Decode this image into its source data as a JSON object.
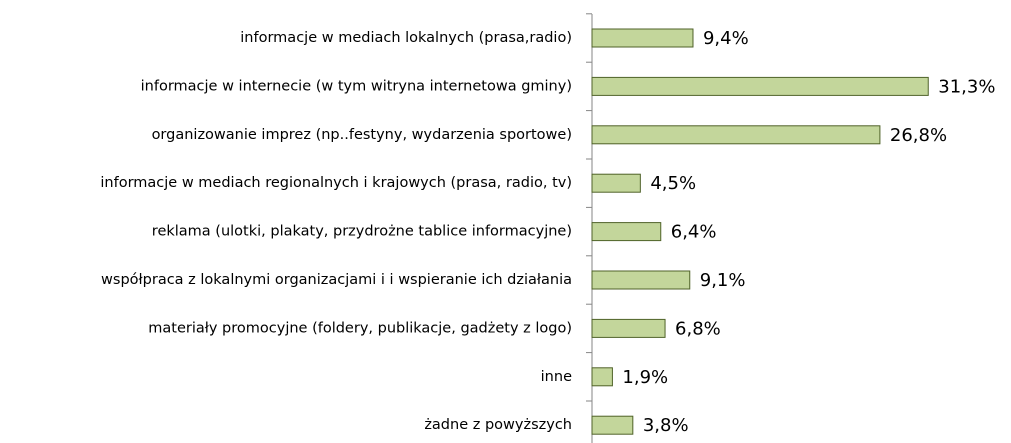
{
  "chart_data": {
    "type": "bar",
    "orientation": "horizontal",
    "categories": [
      "informacje w mediach lokalnych (prasa,radio)",
      "informacje w internecie (w tym witryna internetowa gminy)",
      "organizowanie imprez (np..festyny, wydarzenia sportowe)",
      "informacje w mediach regionalnych i krajowych (prasa, radio, tv)",
      "reklama (ulotki, plakaty, przydrożne tablice informacyjne)",
      "współpraca z lokalnymi organizacjami i i wspieranie ich działania",
      "materiały promocyjne (foldery, publikacje, gadżety z logo)",
      "inne",
      "żadne z powyższych"
    ],
    "values": [
      9.4,
      31.3,
      26.8,
      4.5,
      6.4,
      9.1,
      6.8,
      1.9,
      3.8
    ],
    "value_labels": [
      "9,4%",
      "31,3%",
      "26,8%",
      "4,5%",
      "6,4%",
      "9,1%",
      "6,8%",
      "1,9%",
      "3,8%"
    ],
    "color": "#c3d69b",
    "edge_color": "#4f6228",
    "xlim": [
      0,
      35
    ]
  }
}
